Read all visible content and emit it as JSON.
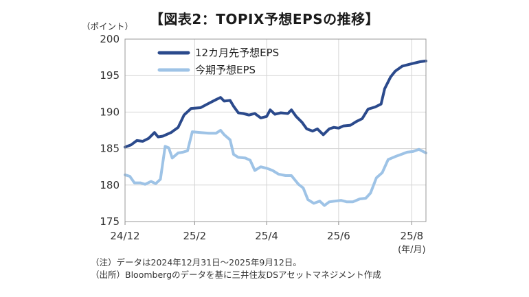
{
  "title": "【図表2：TOPIX予想EPSの推移】",
  "unit_label": "（ポイント）",
  "notes": [
    "（注）データは2024年12月31日～2025年9月12日。",
    "（出所）Bloombergのデータを基に三井住友DSアセットマネジメント作成"
  ],
  "chart_data": {
    "type": "line",
    "title": "【図表2：TOPIX予想EPSの推移】",
    "ylabel": "（ポイント）",
    "x_unit": "(年/月)",
    "x_range": [
      "2024-12-31",
      "2025-09-12"
    ],
    "ylim": [
      175,
      200
    ],
    "yticks": [
      175,
      180,
      185,
      190,
      195,
      200
    ],
    "xticks": [
      {
        "date": "2024-12-31",
        "label": "24/12"
      },
      {
        "date": "2025-02-28",
        "label": "25/2"
      },
      {
        "date": "2025-04-30",
        "label": "25/4"
      },
      {
        "date": "2025-06-30",
        "label": "25/6"
      },
      {
        "date": "2025-08-31",
        "label": "25/8"
      }
    ],
    "grid": true,
    "legend": "top-left",
    "colors": {
      "series_12m": "#2b4a8c",
      "series_current": "#9ec3e6"
    },
    "series": [
      {
        "name": "12カ月先予想EPS",
        "color": "#2b4a8c",
        "points": [
          [
            "2024-12-31",
            185.2
          ],
          [
            "2025-01-05",
            185.5
          ],
          [
            "2025-01-10",
            186.1
          ],
          [
            "2025-01-15",
            186.0
          ],
          [
            "2025-01-20",
            186.4
          ],
          [
            "2025-01-25",
            187.2
          ],
          [
            "2025-01-28",
            186.6
          ],
          [
            "2025-02-01",
            186.7
          ],
          [
            "2025-02-08",
            187.2
          ],
          [
            "2025-02-14",
            187.9
          ],
          [
            "2025-02-19",
            189.6
          ],
          [
            "2025-02-25",
            190.5
          ],
          [
            "2025-03-05",
            190.6
          ],
          [
            "2025-03-12",
            191.2
          ],
          [
            "2025-03-18",
            191.7
          ],
          [
            "2025-03-22",
            192.0
          ],
          [
            "2025-03-25",
            191.5
          ],
          [
            "2025-03-30",
            191.6
          ],
          [
            "2025-04-02",
            190.8
          ],
          [
            "2025-04-06",
            189.9
          ],
          [
            "2025-04-10",
            189.8
          ],
          [
            "2025-04-15",
            189.6
          ],
          [
            "2025-04-20",
            189.8
          ],
          [
            "2025-04-25",
            189.2
          ],
          [
            "2025-04-30",
            189.4
          ],
          [
            "2025-05-03",
            190.3
          ],
          [
            "2025-05-07",
            189.7
          ],
          [
            "2025-05-12",
            189.9
          ],
          [
            "2025-05-18",
            189.8
          ],
          [
            "2025-05-21",
            190.3
          ],
          [
            "2025-05-25",
            189.4
          ],
          [
            "2025-05-30",
            188.6
          ],
          [
            "2025-06-03",
            187.7
          ],
          [
            "2025-06-08",
            187.4
          ],
          [
            "2025-06-12",
            187.7
          ],
          [
            "2025-06-17",
            186.9
          ],
          [
            "2025-06-22",
            187.7
          ],
          [
            "2025-06-26",
            187.9
          ],
          [
            "2025-06-30",
            187.8
          ],
          [
            "2025-07-04",
            188.1
          ],
          [
            "2025-07-10",
            188.2
          ],
          [
            "2025-07-15",
            188.7
          ],
          [
            "2025-07-20",
            189.1
          ],
          [
            "2025-07-25",
            190.4
          ],
          [
            "2025-07-31",
            190.7
          ],
          [
            "2025-08-05",
            191.1
          ],
          [
            "2025-08-08",
            193.2
          ],
          [
            "2025-08-13",
            194.8
          ],
          [
            "2025-08-17",
            195.6
          ],
          [
            "2025-08-23",
            196.3
          ],
          [
            "2025-08-28",
            196.5
          ],
          [
            "2025-09-02",
            196.7
          ],
          [
            "2025-09-07",
            196.9
          ],
          [
            "2025-09-12",
            197.0
          ]
        ]
      },
      {
        "name": "今期予想EPS",
        "color": "#9ec3e6",
        "points": [
          [
            "2024-12-31",
            181.4
          ],
          [
            "2025-01-04",
            181.2
          ],
          [
            "2025-01-08",
            180.3
          ],
          [
            "2025-01-13",
            180.3
          ],
          [
            "2025-01-17",
            180.1
          ],
          [
            "2025-01-22",
            180.5
          ],
          [
            "2025-01-26",
            180.2
          ],
          [
            "2025-01-30",
            180.8
          ],
          [
            "2025-02-03",
            185.3
          ],
          [
            "2025-02-06",
            185.1
          ],
          [
            "2025-02-09",
            183.7
          ],
          [
            "2025-02-14",
            184.4
          ],
          [
            "2025-02-18",
            184.5
          ],
          [
            "2025-02-22",
            184.7
          ],
          [
            "2025-02-26",
            187.3
          ],
          [
            "2025-03-05",
            187.2
          ],
          [
            "2025-03-12",
            187.1
          ],
          [
            "2025-03-18",
            187.1
          ],
          [
            "2025-03-22",
            187.5
          ],
          [
            "2025-03-25",
            186.9
          ],
          [
            "2025-03-30",
            186.2
          ],
          [
            "2025-04-02",
            184.2
          ],
          [
            "2025-04-06",
            183.8
          ],
          [
            "2025-04-12",
            183.7
          ],
          [
            "2025-04-16",
            183.4
          ],
          [
            "2025-04-20",
            182.0
          ],
          [
            "2025-04-25",
            182.5
          ],
          [
            "2025-04-30",
            182.3
          ],
          [
            "2025-05-05",
            182.0
          ],
          [
            "2025-05-10",
            181.5
          ],
          [
            "2025-05-16",
            181.3
          ],
          [
            "2025-05-21",
            181.3
          ],
          [
            "2025-05-24",
            180.7
          ],
          [
            "2025-05-27",
            180.1
          ],
          [
            "2025-05-31",
            179.6
          ],
          [
            "2025-06-04",
            178.0
          ],
          [
            "2025-06-09",
            177.5
          ],
          [
            "2025-06-14",
            177.8
          ],
          [
            "2025-06-18",
            177.2
          ],
          [
            "2025-06-22",
            177.7
          ],
          [
            "2025-06-27",
            177.8
          ],
          [
            "2025-07-02",
            177.9
          ],
          [
            "2025-07-07",
            177.7
          ],
          [
            "2025-07-12",
            177.7
          ],
          [
            "2025-07-18",
            178.1
          ],
          [
            "2025-07-23",
            178.2
          ],
          [
            "2025-07-27",
            178.9
          ],
          [
            "2025-08-01",
            181.0
          ],
          [
            "2025-08-06",
            181.7
          ],
          [
            "2025-08-11",
            183.5
          ],
          [
            "2025-08-17",
            183.9
          ],
          [
            "2025-08-22",
            184.2
          ],
          [
            "2025-08-27",
            184.5
          ],
          [
            "2025-09-01",
            184.6
          ],
          [
            "2025-09-06",
            184.9
          ],
          [
            "2025-09-12",
            184.4
          ]
        ]
      }
    ]
  }
}
